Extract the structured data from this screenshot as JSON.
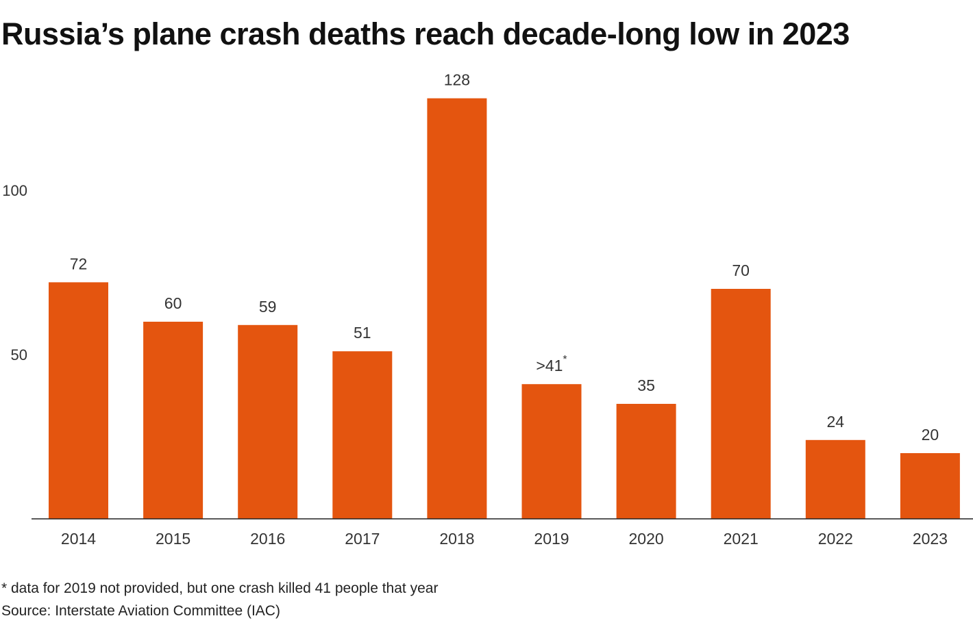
{
  "title": "Russia’s plane crash deaths reach decade-long low in 2023",
  "footnote": "* data for 2019 not provided, but one crash killed 41 people that year",
  "source": "Source: Interstate Aviation Committee (IAC)",
  "colors": {
    "bar": "#e4550f",
    "axis": "#222222"
  },
  "chart_data": {
    "type": "bar",
    "categories": [
      "2014",
      "2015",
      "2016",
      "2017",
      "2018",
      "2019",
      "2020",
      "2021",
      "2022",
      "2023"
    ],
    "values": [
      72,
      60,
      59,
      51,
      128,
      41,
      35,
      70,
      24,
      20
    ],
    "data_labels": [
      "72",
      "60",
      "59",
      "51",
      "128",
      ">41",
      "35",
      "70",
      "24",
      "20"
    ],
    "annotations": [
      "",
      "",
      "",
      "",
      "",
      "*",
      "",
      "",
      "",
      ""
    ],
    "y_ticks": [
      50,
      100
    ],
    "ylim": [
      0,
      140
    ],
    "grid": false,
    "xlabel": "",
    "ylabel": ""
  }
}
